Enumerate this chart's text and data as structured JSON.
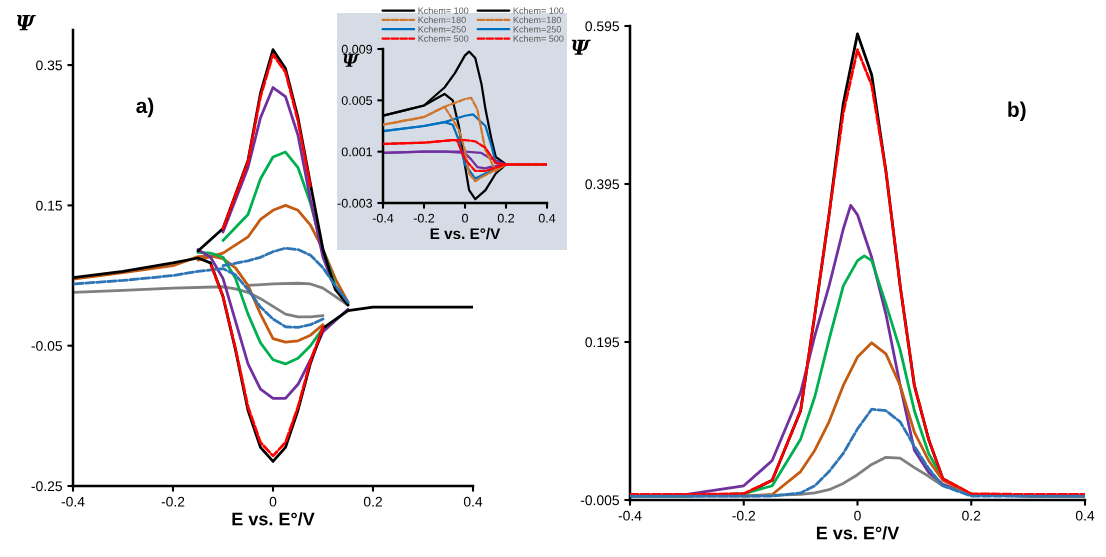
{
  "chart_data": [
    {
      "type": "line",
      "xlabel": "E vs. E°/V",
      "ylabel": "Ψ",
      "annotations": [
        "a)"
      ],
      "xlim": [
        -0.4,
        0.4
      ],
      "ylim": [
        -0.25,
        0.4
      ],
      "xticks": [
        -0.4,
        -0.2,
        0,
        0.2,
        0.4
      ],
      "yticks": [
        -0.25,
        -0.05,
        0.15,
        0.35
      ],
      "grid": false,
      "legend": false,
      "series": [
        {
          "color": "#7f7f7f",
          "line_style": "solid",
          "x": [
            -0.05,
            0,
            0.05,
            0.075,
            0.1,
            0.125,
            0.15
          ],
          "values": [
            0.036,
            0.038,
            0.039,
            0.038,
            0.032,
            0.02,
            0.008
          ]
        },
        {
          "color": "#7f7f7f",
          "line_style": "solid",
          "x": [
            0.1,
            0.075,
            0.05,
            0.025,
            0,
            -0.025,
            -0.05,
            -0.075,
            -0.1,
            -0.2,
            -0.3,
            -0.4
          ],
          "values": [
            -0.007,
            -0.009,
            -0.009,
            -0.005,
            0.006,
            0.017,
            0.026,
            0.031,
            0.034,
            0.032,
            0.029,
            0.026
          ]
        },
        {
          "color": "#2e75b6",
          "line_style": "dashed",
          "x": [
            -0.1,
            -0.05,
            -0.025,
            0,
            0.025,
            0.05,
            0.075,
            0.1,
            0.125,
            0.15
          ],
          "values": [
            0.064,
            0.071,
            0.076,
            0.084,
            0.089,
            0.087,
            0.079,
            0.061,
            0.035,
            0.012
          ]
        },
        {
          "color": "#2e75b6",
          "line_style": "dashed",
          "x": [
            0.1,
            0.075,
            0.05,
            0.025,
            0,
            -0.025,
            -0.05,
            -0.075,
            -0.1,
            -0.15,
            -0.2,
            -0.3,
            -0.4
          ],
          "values": [
            -0.012,
            -0.02,
            -0.024,
            -0.023,
            -0.012,
            0.005,
            0.03,
            0.051,
            0.06,
            0.056,
            0.05,
            0.043,
            0.038
          ]
        },
        {
          "color": "#c55a11",
          "line_style": "solid",
          "x": [
            -0.15,
            -0.1,
            -0.05,
            -0.025,
            0,
            0.025,
            0.05,
            0.075,
            0.1,
            0.125,
            0.15
          ],
          "values": [
            0.072,
            0.082,
            0.105,
            0.13,
            0.143,
            0.15,
            0.143,
            0.122,
            0.087,
            0.045,
            0.012
          ]
        },
        {
          "color": "#c55a11",
          "line_style": "solid",
          "x": [
            0.1,
            0.075,
            0.05,
            0.025,
            0,
            -0.025,
            -0.05,
            -0.075,
            -0.1,
            -0.125,
            -0.15,
            -0.2,
            -0.3,
            -0.4
          ],
          "values": [
            -0.02,
            -0.035,
            -0.043,
            -0.045,
            -0.04,
            -0.005,
            0.036,
            0.061,
            0.074,
            0.078,
            0.077,
            0.064,
            0.054,
            0.045
          ]
        },
        {
          "color": "#00b050",
          "line_style": "solid",
          "x": [
            -0.1,
            -0.05,
            -0.025,
            0,
            0.025,
            0.05,
            0.075,
            0.1,
            0.125,
            0.15
          ],
          "values": [
            0.1,
            0.137,
            0.188,
            0.219,
            0.226,
            0.204,
            0.153,
            0.087,
            0.035,
            0.01
          ]
        },
        {
          "color": "#00b050",
          "line_style": "solid",
          "x": [
            0.1,
            0.075,
            0.05,
            0.025,
            0,
            -0.025,
            -0.05,
            -0.075,
            -0.1,
            -0.125,
            -0.15
          ],
          "values": [
            -0.025,
            -0.05,
            -0.068,
            -0.076,
            -0.07,
            -0.046,
            -0.005,
            0.046,
            0.076,
            0.082,
            0.083
          ]
        },
        {
          "color": "#7030a0",
          "line_style": "solid",
          "x": [
            -0.1,
            -0.05,
            -0.025,
            0,
            0.025,
            0.05,
            0.075,
            0.1,
            0.125
          ],
          "values": [
            0.112,
            0.204,
            0.275,
            0.318,
            0.305,
            0.25,
            0.158,
            0.076,
            0.03
          ]
        },
        {
          "color": "#7030a0",
          "line_style": "solid",
          "x": [
            0.15,
            0.1,
            0.075,
            0.05,
            0.025,
            0,
            -0.025,
            -0.05,
            -0.075,
            -0.1,
            -0.125,
            -0.15
          ],
          "values": [
            0.002,
            -0.03,
            -0.07,
            -0.105,
            -0.125,
            -0.125,
            -0.112,
            -0.076,
            -0.015,
            0.046,
            0.076,
            0.087
          ]
        },
        {
          "color": "#ff0000",
          "line_style": "dashed",
          "x": [
            -0.1,
            -0.05,
            -0.025,
            0,
            0.025,
            0.05,
            0.075
          ],
          "values": [
            0.117,
            0.212,
            0.305,
            0.365,
            0.34,
            0.27,
            0.177
          ]
        },
        {
          "color": "#ff0000",
          "line_style": "dashed",
          "x": [
            0.1,
            0.075,
            0.05,
            0.025,
            0,
            -0.025,
            -0.05,
            -0.075,
            -0.1,
            -0.125
          ],
          "values": [
            -0.024,
            -0.072,
            -0.137,
            -0.188,
            -0.207,
            -0.188,
            -0.137,
            -0.054,
            0.02,
            0.067
          ]
        },
        {
          "color": "#000000",
          "line_style": "solid",
          "x": [
            -0.15,
            -0.1,
            -0.05,
            -0.025,
            0,
            0.025,
            0.05,
            0.075,
            0.1,
            0.125,
            0.15
          ],
          "values": [
            0.085,
            0.117,
            0.214,
            0.31,
            0.372,
            0.345,
            0.275,
            0.18,
            0.087,
            0.03,
            0.008
          ]
        },
        {
          "color": "#000000",
          "line_style": "solid",
          "x": [
            0.4,
            0.3,
            0.2,
            0.15,
            0.1,
            0.075,
            0.05,
            0.025,
            0,
            -0.025,
            -0.05,
            -0.075,
            -0.1,
            -0.125,
            -0.15,
            -0.2,
            -0.3,
            -0.4
          ],
          "values": [
            0.005,
            0.005,
            0.005,
            0.0,
            -0.025,
            -0.075,
            -0.142,
            -0.195,
            -0.215,
            -0.195,
            -0.142,
            -0.056,
            0.02,
            0.068,
            0.075,
            0.068,
            0.056,
            0.047
          ]
        }
      ]
    },
    {
      "type": "line",
      "xlabel": "E vs. E°/V",
      "ylabel": "Ψ",
      "xlim": [
        -0.4,
        0.4
      ],
      "ylim": [
        -0.003,
        0.009
      ],
      "xticks": [
        -0.4,
        -0.2,
        0,
        0.2,
        0.4
      ],
      "yticks": [
        -0.003,
        0.001,
        0.005,
        0.009
      ],
      "grid": false,
      "legend": "top",
      "series": [
        {
          "name": "Kchem= 100",
          "color": "#000000",
          "line_style": "solid",
          "x": [
            -0.4,
            -0.3,
            -0.2,
            -0.1,
            -0.05,
            0,
            0.02,
            0.05,
            0.08,
            0.1,
            0.13,
            0.15,
            0.2,
            0.4
          ],
          "values": [
            0.0038,
            0.0042,
            0.0046,
            0.006,
            0.0071,
            0.0085,
            0.0088,
            0.0083,
            0.0063,
            0.0043,
            0.0019,
            0.0006,
            0.0,
            0.0
          ]
        },
        {
          "color": "#000000",
          "line_style": "solid",
          "x": [
            0.4,
            0.2,
            0.15,
            0.1,
            0.05,
            0.02,
            0,
            -0.03,
            -0.06,
            -0.1,
            -0.2,
            -0.3,
            -0.4
          ],
          "values": [
            0.0,
            0.0,
            -0.0007,
            -0.002,
            -0.0027,
            -0.002,
            -0.0001,
            0.003,
            0.005,
            0.0055,
            0.0046,
            0.0042,
            0.0038
          ]
        },
        {
          "name": "Kchem=180",
          "color": "#d0772f",
          "line_style": "dashed",
          "x": [
            -0.4,
            -0.2,
            -0.1,
            0,
            0.03,
            0.06,
            0.1,
            0.15,
            0.2,
            0.4
          ],
          "values": [
            0.0031,
            0.0037,
            0.0045,
            0.0051,
            0.0052,
            0.0043,
            0.0011,
            -0.0005,
            0.0,
            0.0
          ]
        },
        {
          "color": "#d0772f",
          "line_style": "dashed",
          "x": [
            0.4,
            0.2,
            0.15,
            0.08,
            0.05,
            0.02,
            0,
            -0.03,
            -0.06,
            -0.1,
            -0.2,
            -0.4
          ],
          "values": [
            0.0,
            0.0,
            -0.0004,
            -0.001,
            -0.0013,
            -0.0007,
            0.0011,
            0.0027,
            0.0035,
            0.0045,
            0.0037,
            0.0031
          ]
        },
        {
          "name": "Kchem=250",
          "color": "#0070c0",
          "line_style": "solid",
          "x": [
            -0.4,
            -0.2,
            -0.1,
            0,
            0.04,
            0.1,
            0.13,
            0.15,
            0.2,
            0.4
          ],
          "values": [
            0.0026,
            0.003,
            0.0033,
            0.0038,
            0.0039,
            0.003,
            0.0014,
            0.0001,
            0.0,
            0.0
          ]
        },
        {
          "color": "#0070c0",
          "line_style": "solid",
          "x": [
            0.4,
            0.2,
            0.1,
            0.05,
            0,
            -0.03,
            -0.06,
            -0.1,
            -0.2,
            -0.4
          ],
          "values": [
            0.0,
            0.0,
            -0.0007,
            -0.0011,
            0.0,
            0.0019,
            0.0031,
            0.0033,
            0.003,
            0.0026
          ]
        },
        {
          "name": "Kchem= 500",
          "color": "#ff0000",
          "line_style": "dashed",
          "x": [
            -0.4,
            -0.2,
            -0.06,
            0,
            0.05,
            0.1,
            0.15,
            0.2,
            0.4
          ],
          "values": [
            0.0016,
            0.0017,
            0.0019,
            0.0019,
            0.0018,
            0.0013,
            0.0001,
            0.0,
            0.0
          ]
        },
        {
          "color": "#ff0000",
          "line_style": "dashed",
          "x": [
            0.4,
            0.2,
            0.1,
            0.05,
            0,
            -0.04,
            -0.06,
            -0.2,
            -0.4
          ],
          "values": [
            0.0,
            0.0,
            -0.0005,
            -0.0005,
            0.0004,
            0.0019,
            0.0019,
            0.0017,
            0.0016
          ]
        },
        {
          "color": "#7030a0",
          "line_style": "solid",
          "x": [
            -0.4,
            -0.2,
            0,
            0.08,
            0.12,
            0.2,
            0.4
          ],
          "values": [
            0.0009,
            0.001,
            0.001,
            0.0009,
            0.0005,
            0.0,
            0.0
          ]
        },
        {
          "color": "#7030a0",
          "line_style": "solid",
          "x": [
            0.4,
            0.2,
            0.12,
            0.1,
            0.06,
            0.03,
            0,
            -0.1,
            -0.2,
            -0.4
          ],
          "values": [
            0.0,
            0.0,
            -0.0002,
            -0.0003,
            -0.0002,
            0.0004,
            0.0009,
            0.001,
            0.001,
            0.0009
          ]
        }
      ]
    },
    {
      "type": "line",
      "xlabel": "E vs. E°/V",
      "ylabel": "Ψ",
      "annotations": [
        "b)"
      ],
      "xlim": [
        -0.4,
        0.4
      ],
      "ylim": [
        -0.005,
        0.595
      ],
      "xticks": [
        -0.4,
        -0.2,
        0,
        0.2,
        0.4
      ],
      "yticks": [
        -0.005,
        0.195,
        0.395,
        0.595
      ],
      "grid": false,
      "legend": false,
      "series": [
        {
          "color": "#000000",
          "line_style": "solid",
          "x": [
            -0.4,
            -0.3,
            -0.2,
            -0.15,
            -0.1,
            -0.075,
            -0.05,
            -0.025,
            0,
            0.025,
            0.05,
            0.075,
            0.1,
            0.125,
            0.15,
            0.2,
            0.3,
            0.4
          ],
          "values": [
            0.0,
            0.0,
            0.002,
            0.02,
            0.108,
            0.23,
            0.356,
            0.497,
            0.585,
            0.533,
            0.411,
            0.266,
            0.14,
            0.072,
            0.022,
            0.002,
            0.0,
            0.0
          ]
        },
        {
          "color": "#ff0000",
          "line_style": "dashed",
          "x": [
            -0.4,
            -0.3,
            -0.2,
            -0.15,
            -0.1,
            -0.075,
            -0.05,
            -0.025,
            0,
            0.025,
            0.05,
            0.075,
            0.1,
            0.125,
            0.15,
            0.2,
            0.3,
            0.4
          ],
          "values": [
            0.002,
            0.002,
            0.003,
            0.02,
            0.108,
            0.23,
            0.356,
            0.485,
            0.565,
            0.52,
            0.411,
            0.266,
            0.14,
            0.072,
            0.022,
            0.003,
            0.002,
            0.002
          ]
        },
        {
          "color": "#7030a0",
          "line_style": "solid",
          "x": [
            -0.4,
            -0.3,
            -0.2,
            -0.15,
            -0.1,
            -0.075,
            -0.05,
            -0.025,
            -0.012,
            0,
            0.025,
            0.05,
            0.075,
            0.1,
            0.125,
            0.15,
            0.2
          ],
          "values": [
            0.0,
            0.002,
            0.013,
            0.045,
            0.131,
            0.203,
            0.266,
            0.338,
            0.368,
            0.356,
            0.302,
            0.23,
            0.14,
            0.058,
            0.03,
            0.015,
            0.002
          ]
        },
        {
          "color": "#00b050",
          "line_style": "solid",
          "x": [
            -0.4,
            -0.3,
            -0.2,
            -0.15,
            -0.1,
            -0.075,
            -0.05,
            -0.025,
            0,
            0.012,
            0.025,
            0.05,
            0.075,
            0.1,
            0.125,
            0.15,
            0.2
          ],
          "values": [
            0.0,
            0.0,
            0.003,
            0.013,
            0.072,
            0.126,
            0.198,
            0.266,
            0.298,
            0.304,
            0.298,
            0.243,
            0.185,
            0.108,
            0.054,
            0.022,
            0.002
          ]
        },
        {
          "color": "#c55a11",
          "line_style": "solid",
          "x": [
            -0.2,
            -0.15,
            -0.1,
            -0.075,
            -0.05,
            -0.025,
            0,
            0.025,
            0.05,
            0.075,
            0.1,
            0.125,
            0.15,
            0.2,
            0.3,
            0.4
          ],
          "values": [
            0.0,
            0.002,
            0.031,
            0.058,
            0.094,
            0.14,
            0.176,
            0.194,
            0.18,
            0.14,
            0.081,
            0.045,
            0.02,
            0.002,
            0.0,
            0.0
          ]
        },
        {
          "color": "#2e75b6",
          "line_style": "dashed",
          "x": [
            -0.4,
            -0.3,
            -0.2,
            -0.15,
            -0.1,
            -0.075,
            -0.05,
            -0.025,
            0,
            0.025,
            0.05,
            0.075,
            0.1,
            0.125,
            0.15,
            0.2,
            0.3,
            0.4
          ],
          "values": [
            0.0,
            0.0,
            0.0,
            0.0,
            0.004,
            0.013,
            0.031,
            0.054,
            0.085,
            0.11,
            0.108,
            0.094,
            0.063,
            0.035,
            0.013,
            0.0,
            0.0,
            0.0
          ]
        },
        {
          "color": "#7f7f7f",
          "line_style": "solid",
          "x": [
            -0.4,
            -0.3,
            -0.2,
            -0.1,
            -0.075,
            -0.05,
            -0.025,
            0,
            0.025,
            0.05,
            0.075,
            0.1,
            0.125,
            0.15,
            0.2,
            0.3,
            0.4
          ],
          "values": [
            0.0,
            0.0,
            0.0,
            0.002,
            0.004,
            0.008,
            0.016,
            0.027,
            0.04,
            0.049,
            0.048,
            0.036,
            0.025,
            0.013,
            0.002,
            0.0,
            0.0
          ]
        }
      ]
    }
  ]
}
